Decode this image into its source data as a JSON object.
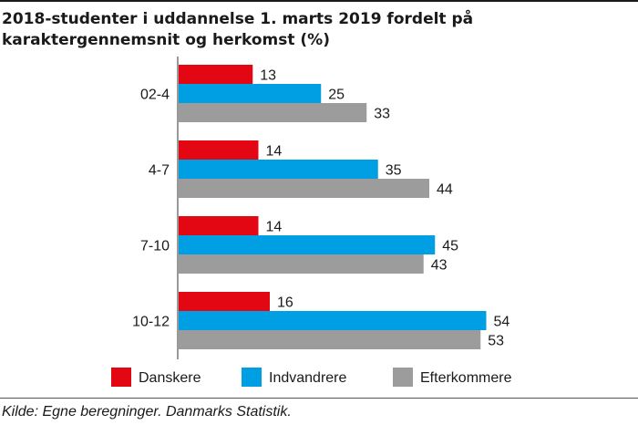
{
  "chart_data": {
    "type": "bar",
    "orientation": "horizontal",
    "title": "2018-studenter i uddannelse 1. marts 2019 fordelt på karaktergennemsnit og herkomst (%)",
    "categories": [
      "02-4",
      "4-7",
      "7-10",
      "10-12"
    ],
    "series": [
      {
        "name": "Danskere",
        "values": [
          13,
          14,
          14,
          16
        ],
        "color": "#e30613"
      },
      {
        "name": "Indvandrere",
        "values": [
          25,
          35,
          45,
          54
        ],
        "color": "#009fe3"
      },
      {
        "name": "Efterkommere",
        "values": [
          33,
          44,
          43,
          53
        ],
        "color": "#9d9c9c"
      }
    ],
    "xlim": [
      0,
      60
    ],
    "grid": false,
    "legend_position": "bottom",
    "source": "Kilde: Egne beregninger. Danmarks Statistik."
  }
}
